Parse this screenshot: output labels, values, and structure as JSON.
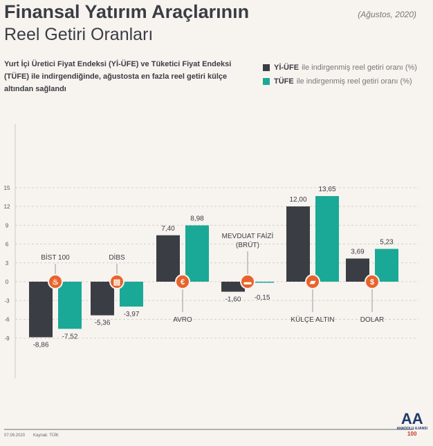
{
  "header": {
    "title": "Finansal Yatırım Araçlarının",
    "subtitle": "Reel Getiri Oranları",
    "date": "(Ağustos, 2020)",
    "description": "Yurt İçi Üretici Fiyat Endeksi (Yİ-ÜFE) ve Tüketici Fiyat Endeksi (TÜFE) ile indirgendiğinde, ağustosta en fazla reel getiri külçe altından sağlandı"
  },
  "legend": [
    {
      "bold": "Yİ-ÜFE",
      "text": "ile indirgenmiş reel getiri oranı (%)",
      "color": "#3a3d44"
    },
    {
      "bold": "TÜFE",
      "text": "ile indirgenmiş reel getiri oranı (%)",
      "color": "#1aa996"
    }
  ],
  "footer": {
    "date": "07.09.2020",
    "source": "Kaynak: TÜİK",
    "logo": "ANADOLU AJANSI"
  },
  "icon_color": "#e8632b",
  "chart_data": {
    "type": "bar",
    "ylim": [
      -9,
      15
    ],
    "yticks": [
      15,
      12,
      9,
      6,
      3,
      0,
      -3,
      -6,
      -9
    ],
    "grid": true,
    "categories": [
      "BİST 100",
      "DİBS",
      "AVRO",
      "MEVDUAT FAİZİ (BRÜT)",
      "KÜLÇE ALTIN",
      "DOLAR"
    ],
    "icons": [
      "fire-icon",
      "document-icon",
      "euro-icon",
      "money-icon",
      "gold-bars-icon",
      "dollar-icon"
    ],
    "series": [
      {
        "name": "Yİ-ÜFE",
        "color": "#3a3d44",
        "values": [
          -8.86,
          -5.36,
          7.4,
          -1.6,
          12.0,
          3.69
        ],
        "labels": [
          "-8,86",
          "-5,36",
          "7,40",
          "-1,60",
          "12,00",
          "3,69"
        ]
      },
      {
        "name": "TÜFE",
        "color": "#1aa996",
        "values": [
          -7.52,
          -3.97,
          8.98,
          -0.15,
          13.65,
          5.23
        ],
        "labels": [
          "-7,52",
          "-3,97",
          "8,98",
          "-0,15",
          "13,65",
          "5,23"
        ]
      }
    ]
  }
}
